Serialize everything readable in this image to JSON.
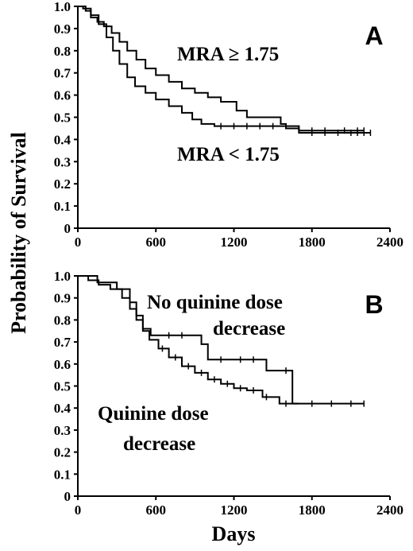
{
  "figure": {
    "ylabel": "Probability of Survival",
    "xlabel": "Days"
  },
  "chart_data": [
    {
      "type": "line",
      "step": true,
      "panel_label": "A",
      "xlim": [
        0,
        2400
      ],
      "ylim": [
        0,
        1.0
      ],
      "x_ticks": [
        "0",
        "600",
        "1200",
        "1800",
        "2400"
      ],
      "y_ticks": [
        "0",
        "0.1",
        "0.2",
        "0.3",
        "0.4",
        "0.5",
        "0.6",
        "0.7",
        "0.8",
        "0.9",
        "1.0"
      ],
      "annotations": [
        "MRA ≥ 1.75",
        "MRA < 1.75"
      ],
      "series": [
        {
          "name": "MRA ≥ 1.75",
          "points": [
            [
              0,
              1.0
            ],
            [
              60,
              0.98
            ],
            [
              100,
              0.95
            ],
            [
              150,
              0.93
            ],
            [
              200,
              0.91
            ],
            [
              260,
              0.88
            ],
            [
              320,
              0.84
            ],
            [
              380,
              0.8
            ],
            [
              450,
              0.76
            ],
            [
              520,
              0.72
            ],
            [
              600,
              0.69
            ],
            [
              700,
              0.66
            ],
            [
              800,
              0.63
            ],
            [
              900,
              0.61
            ],
            [
              1000,
              0.59
            ],
            [
              1100,
              0.57
            ],
            [
              1180,
              0.57
            ],
            [
              1220,
              0.53
            ],
            [
              1300,
              0.5
            ],
            [
              1450,
              0.5
            ],
            [
              1560,
              0.47
            ],
            [
              1600,
              0.45
            ],
            [
              1700,
              0.44
            ],
            [
              2200,
              0.44
            ]
          ],
          "censored": [
            1800,
            1900,
            2050,
            2150,
            2200
          ]
        },
        {
          "name": "MRA < 1.75",
          "points": [
            [
              0,
              1.0
            ],
            [
              40,
              0.99
            ],
            [
              100,
              0.96
            ],
            [
              160,
              0.92
            ],
            [
              220,
              0.86
            ],
            [
              270,
              0.8
            ],
            [
              320,
              0.74
            ],
            [
              380,
              0.68
            ],
            [
              440,
              0.64
            ],
            [
              520,
              0.61
            ],
            [
              600,
              0.58
            ],
            [
              700,
              0.55
            ],
            [
              800,
              0.52
            ],
            [
              880,
              0.49
            ],
            [
              950,
              0.47
            ],
            [
              1050,
              0.46
            ],
            [
              1600,
              0.46
            ],
            [
              1700,
              0.43
            ],
            [
              2250,
              0.43
            ]
          ],
          "censored": [
            1100,
            1200,
            1300,
            1400,
            1500,
            1800,
            1900,
            2000,
            2100,
            2150,
            2200,
            2250
          ]
        }
      ]
    },
    {
      "type": "line",
      "step": true,
      "panel_label": "B",
      "xlim": [
        0,
        2400
      ],
      "ylim": [
        0,
        1.0
      ],
      "x_ticks": [
        "0",
        "600",
        "1200",
        "1800",
        "2400"
      ],
      "y_ticks": [
        "0",
        "0.1",
        "0.2",
        "0.3",
        "0.4",
        "0.5",
        "0.6",
        "0.7",
        "0.8",
        "0.9",
        "1.0"
      ],
      "annotations": [
        "No quinine dose decrease",
        "Quinine dose decrease"
      ],
      "series": [
        {
          "name": "No quinine dose decrease",
          "points": [
            [
              0,
              1.0
            ],
            [
              150,
              0.97
            ],
            [
              300,
              0.94
            ],
            [
              400,
              0.88
            ],
            [
              450,
              0.82
            ],
            [
              500,
              0.76
            ],
            [
              560,
              0.73
            ],
            [
              950,
              0.69
            ],
            [
              1000,
              0.62
            ],
            [
              1450,
              0.57
            ],
            [
              1650,
              0.42
            ],
            [
              1700,
              0.42
            ]
          ],
          "censored": [
            700,
            800,
            1100,
            1250,
            1350,
            1600
          ]
        },
        {
          "name": "Quinine dose decrease",
          "points": [
            [
              0,
              1.0
            ],
            [
              80,
              0.98
            ],
            [
              160,
              0.96
            ],
            [
              250,
              0.94
            ],
            [
              340,
              0.9
            ],
            [
              400,
              0.85
            ],
            [
              450,
              0.8
            ],
            [
              500,
              0.75
            ],
            [
              550,
              0.71
            ],
            [
              620,
              0.67
            ],
            [
              700,
              0.63
            ],
            [
              800,
              0.59
            ],
            [
              900,
              0.56
            ],
            [
              1000,
              0.53
            ],
            [
              1100,
              0.51
            ],
            [
              1200,
              0.49
            ],
            [
              1300,
              0.48
            ],
            [
              1420,
              0.45
            ],
            [
              1550,
              0.42
            ],
            [
              2200,
              0.42
            ]
          ],
          "censored": [
            650,
            750,
            850,
            950,
            1050,
            1150,
            1250,
            1350,
            1450,
            1600,
            1800,
            1950,
            2100,
            2200
          ]
        }
      ]
    }
  ]
}
